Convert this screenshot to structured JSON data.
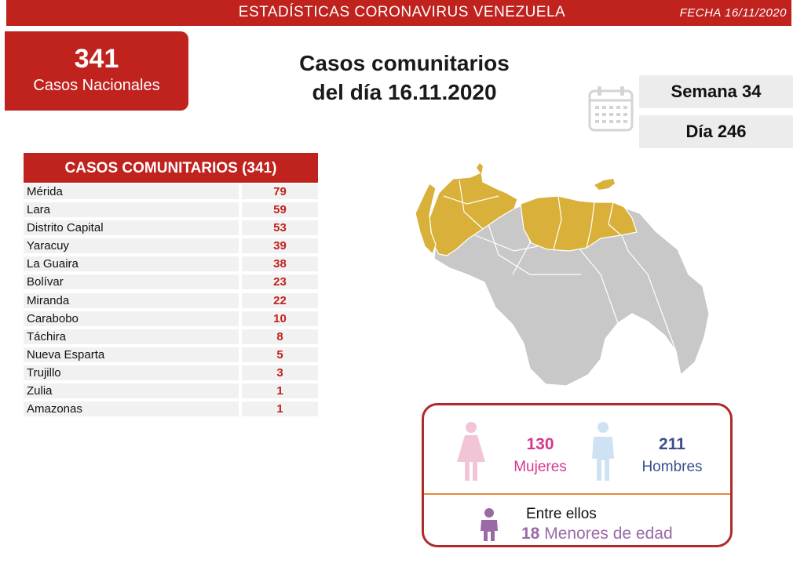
{
  "header": {
    "title": "ESTADÍSTICAS CORONAVIRUS VENEZUELA",
    "date": "FECHA 16/11/2020"
  },
  "national": {
    "count": "341",
    "label": "Casos Nacionales"
  },
  "main_title": {
    "line1": "Casos comunitarios",
    "line2": "del día 16.11.2020"
  },
  "calendar": {
    "week": "Semana 34",
    "day": "Día 246"
  },
  "table": {
    "header": "CASOS COMUNITARIOS (341)",
    "rows": [
      {
        "state": "Mérida",
        "cases": "79"
      },
      {
        "state": "Lara",
        "cases": "59"
      },
      {
        "state": "Distrito Capital",
        "cases": "53"
      },
      {
        "state": "Yaracuy",
        "cases": "39"
      },
      {
        "state": "La Guaira",
        "cases": "38"
      },
      {
        "state": "Bolívar",
        "cases": "23"
      },
      {
        "state": "Miranda",
        "cases": "22"
      },
      {
        "state": "Carabobo",
        "cases": "10"
      },
      {
        "state": "Táchira",
        "cases": "8"
      },
      {
        "state": "Nueva Esparta",
        "cases": "5"
      },
      {
        "state": "Trujillo",
        "cases": "3"
      },
      {
        "state": "Zulia",
        "cases": "1"
      },
      {
        "state": "Amazonas",
        "cases": "1"
      }
    ]
  },
  "gender": {
    "female_count": "130",
    "female_label": "Mujeres",
    "male_count": "211",
    "male_label": "Hombres",
    "among_label": "Entre ellos",
    "minors_count": "18",
    "minors_label": "Menores de edad"
  },
  "colors": {
    "brand_red": "#c0221e",
    "map_highlight": "#d9b13a",
    "map_base": "#c8c8c8",
    "female": "#d6388f",
    "male": "#3b4f8c",
    "minor": "#9b6aa6"
  }
}
